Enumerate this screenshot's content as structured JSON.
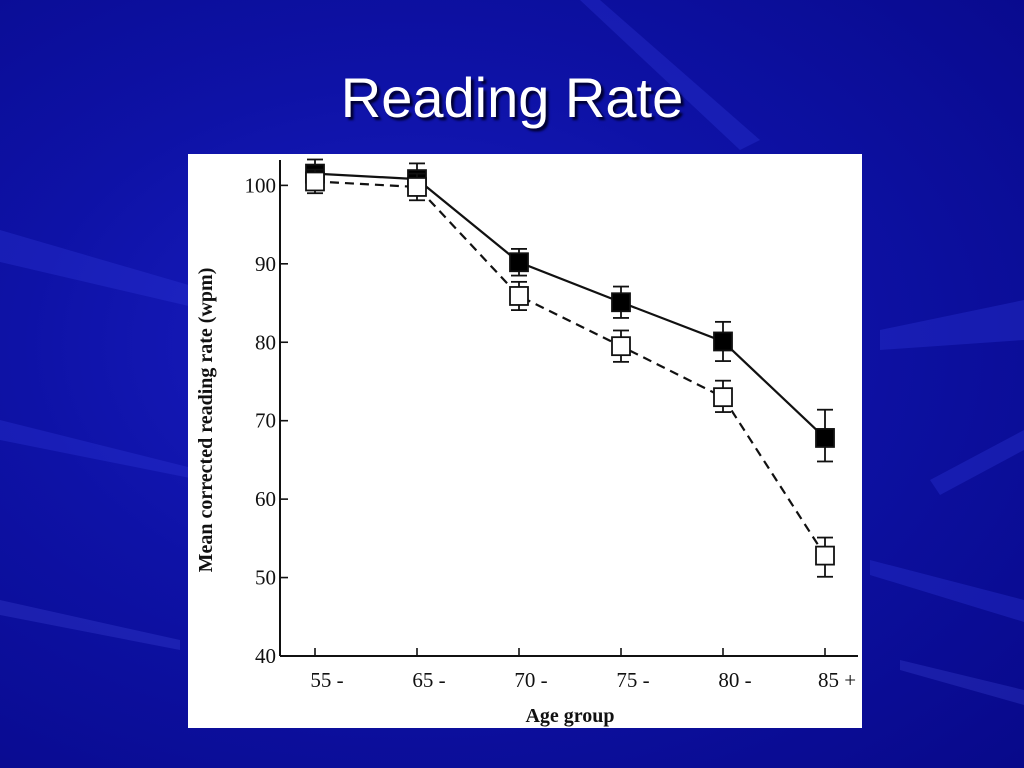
{
  "slide": {
    "title": "Reading Rate"
  },
  "chart_data": {
    "type": "line",
    "title": "",
    "xlabel": "Age group",
    "ylabel": "Mean corrected reading rate (wpm)",
    "categories": [
      "55 -",
      "65 -",
      "70 -",
      "75 -",
      "80 -",
      "85 +"
    ],
    "ylim": [
      40,
      104
    ],
    "yticks": [
      40,
      50,
      60,
      70,
      80,
      90,
      100
    ],
    "grid": false,
    "legend": "none",
    "series": [
      {
        "marker": "filled-square",
        "line_style": "solid",
        "values": [
          101.5,
          100.8,
          90.2,
          85.1,
          80.1,
          67.8
        ],
        "err_upper": [
          1.8,
          2.0,
          1.7,
          2.0,
          2.5,
          3.6
        ],
        "err_lower": [
          1.8,
          2.0,
          1.7,
          2.0,
          2.5,
          3.0
        ]
      },
      {
        "marker": "open-square",
        "line_style": "dashed",
        "values": [
          100.5,
          99.8,
          85.9,
          79.5,
          73.0,
          52.8
        ],
        "err_upper": [
          1.5,
          1.7,
          1.8,
          2.0,
          2.1,
          2.3
        ],
        "err_lower": [
          1.5,
          1.7,
          1.8,
          2.0,
          1.9,
          2.7
        ]
      }
    ]
  }
}
